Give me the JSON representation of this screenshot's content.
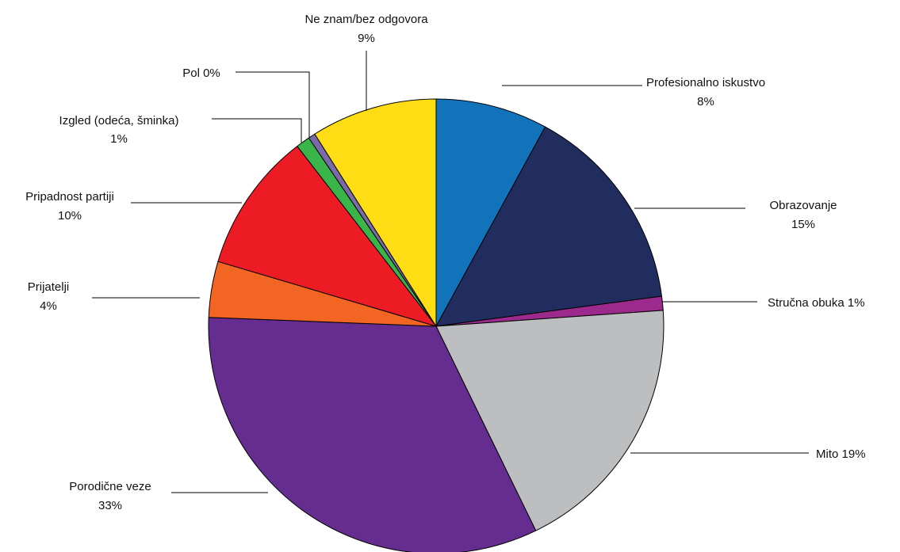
{
  "chart_data": {
    "type": "pie",
    "start_angle_deg": 0,
    "direction": "clockwise",
    "legend": "none",
    "slices": [
      {
        "key": "profesionalno",
        "label": "Profesionalno iskustvo",
        "value": 8,
        "value_label": "8%",
        "color": "#1273ba"
      },
      {
        "key": "obrazovanje",
        "label": "Obrazovanje",
        "value": 15,
        "value_label": "15%",
        "color": "#212d5e"
      },
      {
        "key": "strucna",
        "label": "Stručna obuka 1%",
        "value": 1,
        "value_label": "",
        "color": "#9b2a8c"
      },
      {
        "key": "mito",
        "label": "Mito 19%",
        "value": 19,
        "value_label": "",
        "color": "#bcbec0"
      },
      {
        "key": "porodicne",
        "label": "Porodične veze",
        "value": 33,
        "value_label": "33%",
        "color": "#662d91"
      },
      {
        "key": "prijatelji",
        "label": "Prijatelji",
        "value": 4,
        "value_label": "4%",
        "color": "#f26522"
      },
      {
        "key": "partija",
        "label": "Pripadnost partiji",
        "value": 10,
        "value_label": "10%",
        "color": "#ed1c24"
      },
      {
        "key": "izgled",
        "label": "Izgled (odeća, šminka)",
        "value": 1,
        "value_label": "1%",
        "color": "#39b54a"
      },
      {
        "key": "pol",
        "label": "Pol 0%",
        "value": 0.5,
        "value_label": "",
        "color": "#7b6aa8"
      },
      {
        "key": "neznam",
        "label": "Ne znam/bez odgovora",
        "value": 9,
        "value_label": "9%",
        "color": "#ffdd15"
      }
    ]
  }
}
